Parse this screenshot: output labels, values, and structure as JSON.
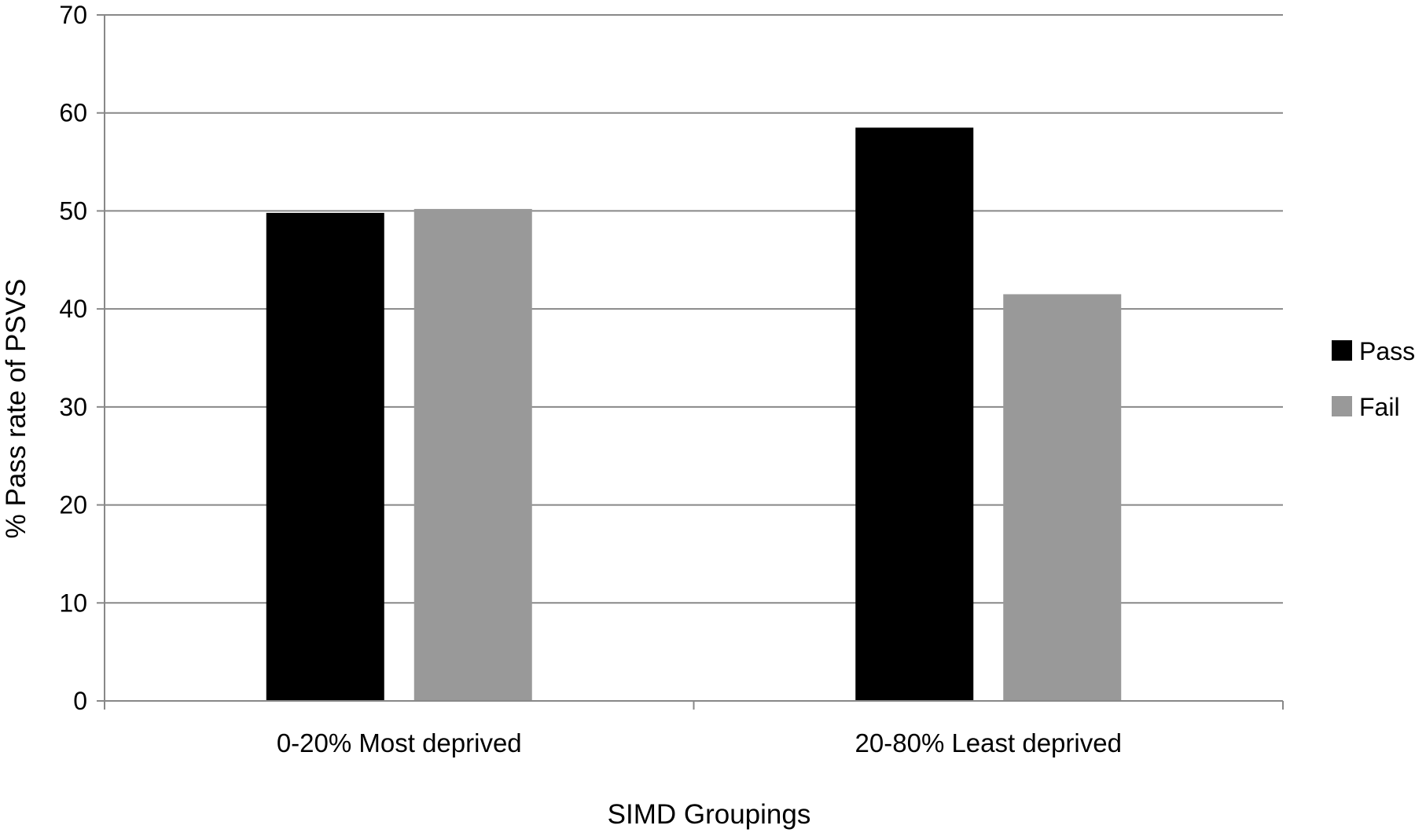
{
  "chart_data": {
    "type": "bar",
    "title": "",
    "xlabel": "SIMD Groupings",
    "ylabel": "% Pass rate of PSVS",
    "categories": [
      "0-20% Most deprived",
      "20-80% Least deprived"
    ],
    "series": [
      {
        "name": "Pass",
        "values": [
          49.8,
          58.5
        ],
        "color": "#000000"
      },
      {
        "name": "Fail",
        "values": [
          50.2,
          41.5
        ],
        "color": "#999999"
      }
    ],
    "ylim": [
      0,
      70
    ],
    "yticks": [
      0,
      10,
      20,
      30,
      40,
      50,
      60,
      70
    ],
    "grid": true,
    "legend": "right"
  }
}
